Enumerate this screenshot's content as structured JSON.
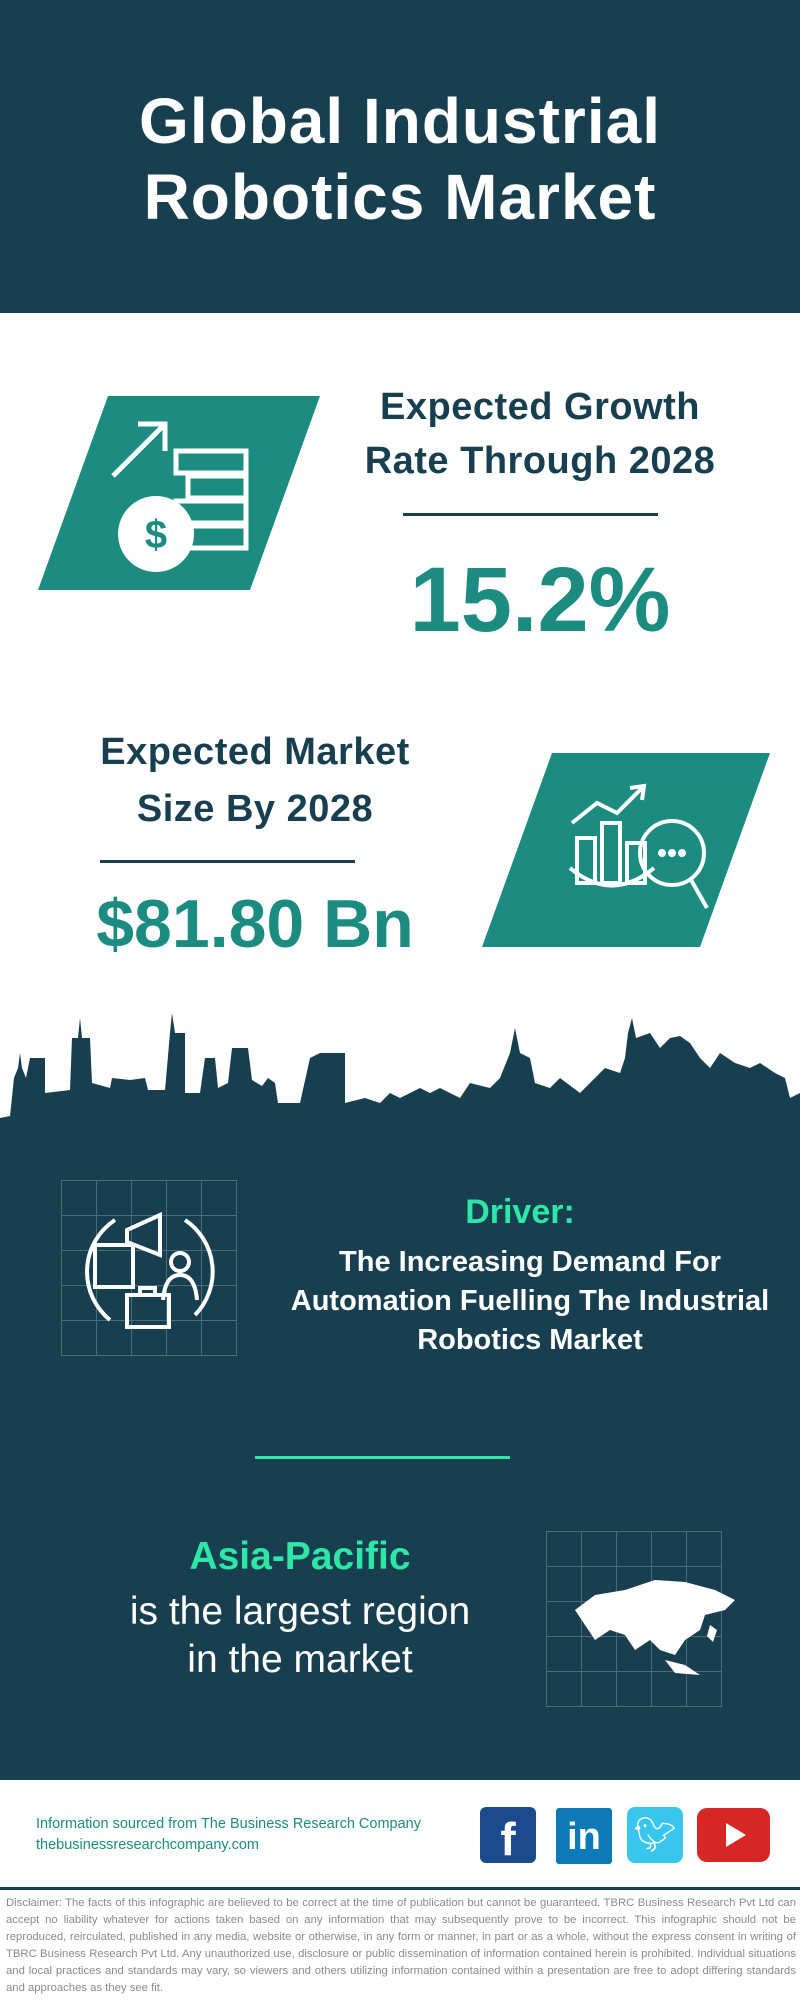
{
  "header": {
    "title_line1": "Global Industrial",
    "title_line2": "Robotics Market"
  },
  "growth": {
    "label_line1": "Expected Growth",
    "label_line2": "Rate Through 2028",
    "value": "15.2%",
    "icon": "growth-money-icon"
  },
  "market_size": {
    "label_line1": "Expected Market",
    "label_line2": "Size By 2028",
    "value": "$81.80 Bn",
    "icon": "market-analysis-icon"
  },
  "driver": {
    "heading": "Driver:",
    "line1": "The Increasing Demand For",
    "line2": "Automation Fuelling The Industrial",
    "line3": "Robotics Market",
    "icon": "marketing-globe-icon"
  },
  "region": {
    "name": "Asia-Pacific",
    "line1": "is the largest region",
    "line2": "in the market",
    "icon": "asia-map-icon"
  },
  "footer": {
    "source": "Information sourced from The Business Research Company",
    "website": "thebusinessresearchcompany.com",
    "social": [
      "facebook",
      "linkedin",
      "twitter",
      "youtube"
    ]
  },
  "disclaimer": "Disclaimer: The facts of this infographic are believed to be correct at the time of publication but cannot be guaranteed. TBRC Business Research Pvt Ltd can accept no liability whatever for actions taken based on any information that may subsequently prove to be incorrect. This infographic should not be reproduced, reirculated, published in any media, website or otherwise, in any form or manner, in part or as a whole, without the express consent in writing of TBRC Business Research Pvt Ltd. Any unauthorized use, disclosure or public dissemination of information contained herein is prohibited. Individual situations and local practices and standards may vary, so viewers and others utilizing information contained within a presentation are free to adopt differing standards and approaches as they see fit.",
  "colors": {
    "dark": "#173f4f",
    "teal": "#1c8c80",
    "accent_green": "#2ee6a6"
  }
}
